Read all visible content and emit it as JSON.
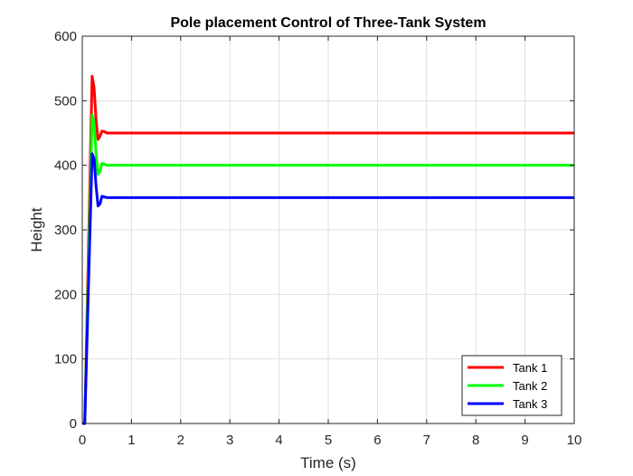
{
  "chart_data": {
    "type": "line",
    "title": "Pole placement Control of Three-Tank System",
    "xlabel": "Time (s)",
    "ylabel": "Height",
    "xlim": [
      0,
      10
    ],
    "ylim": [
      0,
      600
    ],
    "xticks": [
      "0",
      "1",
      "2",
      "3",
      "4",
      "5",
      "6",
      "7",
      "8",
      "9",
      "10"
    ],
    "yticks": [
      "0",
      "100",
      "200",
      "300",
      "400",
      "500",
      "600"
    ],
    "grid": true,
    "legend_position": "bottom-right",
    "series": [
      {
        "name": "Tank 1",
        "color": "#ff0000",
        "x": [
          0.0,
          0.05,
          0.1,
          0.15,
          0.2,
          0.24,
          0.28,
          0.32,
          0.36,
          0.4,
          0.45,
          0.5,
          0.6,
          0.7,
          1.0,
          10.0
        ],
        "y": [
          0,
          0,
          180,
          360,
          538,
          520,
          470,
          440,
          445,
          453,
          452,
          450,
          450,
          450,
          450,
          450
        ]
      },
      {
        "name": "Tank 2",
        "color": "#00ff00",
        "x": [
          0.0,
          0.05,
          0.1,
          0.15,
          0.2,
          0.24,
          0.28,
          0.32,
          0.36,
          0.4,
          0.45,
          0.5,
          0.6,
          0.7,
          1.0,
          10.0
        ],
        "y": [
          0,
          0,
          160,
          320,
          478,
          465,
          418,
          386,
          390,
          403,
          402,
          400,
          400,
          400,
          400,
          400
        ]
      },
      {
        "name": "Tank 3",
        "color": "#0000ff",
        "x": [
          0.0,
          0.05,
          0.1,
          0.15,
          0.2,
          0.24,
          0.28,
          0.32,
          0.36,
          0.4,
          0.45,
          0.5,
          0.6,
          0.7,
          1.0,
          10.0
        ],
        "y": [
          0,
          0,
          140,
          280,
          418,
          410,
          368,
          337,
          340,
          352,
          351,
          350,
          350,
          350,
          350,
          350
        ]
      }
    ]
  }
}
